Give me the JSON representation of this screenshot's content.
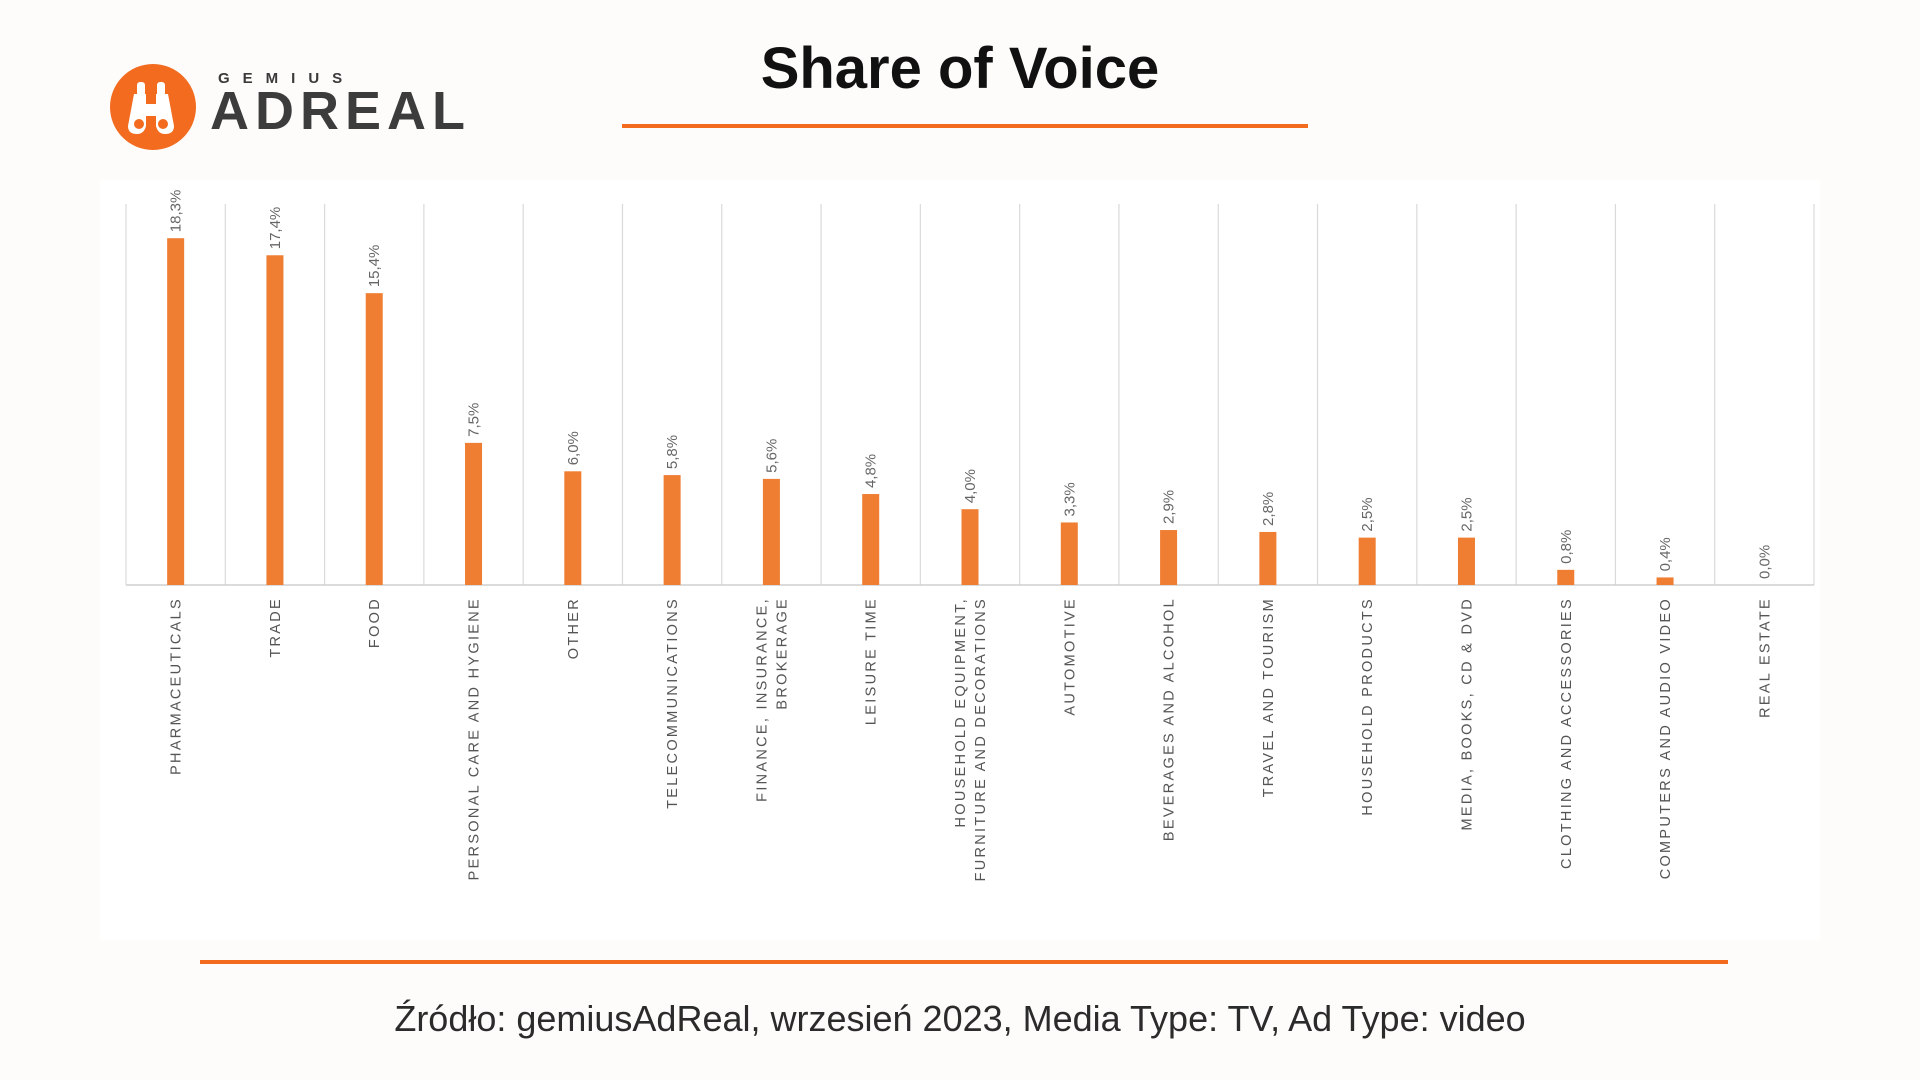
{
  "brand": {
    "small": "GEMIUS",
    "big": "ADREAL",
    "color": "#f26b1f"
  },
  "title": "Share of Voice",
  "source": "Źródło: gemiusAdReal, wrzesień 2023, Media Type: TV, Ad Type: video",
  "chart_data": {
    "type": "bar",
    "title": "Share of Voice",
    "xlabel": "",
    "ylabel": "",
    "ylim": [
      0,
      20
    ],
    "grid": "vertical",
    "bar_color": "#ef7d32",
    "categories": [
      [
        "PHARMACEUTICALS"
      ],
      [
        "TRADE"
      ],
      [
        "FOOD"
      ],
      [
        "PERSONAL CARE AND HYGIENE"
      ],
      [
        "OTHER"
      ],
      [
        "TELECOMMUNICATIONS"
      ],
      [
        "FINANCE, INSURANCE,",
        "BROKERAGE"
      ],
      [
        "LEISURE TIME"
      ],
      [
        "HOUSEHOLD EQUIPMENT,",
        "FURNITURE AND DECORATIONS"
      ],
      [
        "AUTOMOTIVE"
      ],
      [
        "BEVERAGES AND ALCOHOL"
      ],
      [
        "TRAVEL AND TOURISM"
      ],
      [
        "HOUSEHOLD PRODUCTS"
      ],
      [
        "MEDIA, BOOKS, CD & DVD"
      ],
      [
        "CLOTHING AND ACCESSORIES"
      ],
      [
        "COMPUTERS AND AUDIO VIDEO"
      ],
      [
        "REAL ESTATE"
      ]
    ],
    "values": [
      18.3,
      17.4,
      15.4,
      7.5,
      6.0,
      5.8,
      5.6,
      4.8,
      4.0,
      3.3,
      2.9,
      2.8,
      2.5,
      2.5,
      0.8,
      0.4,
      0.0
    ],
    "labels": [
      "18,3%",
      "17,4%",
      "15,4%",
      "7,5%",
      "6,0%",
      "5,8%",
      "5,6%",
      "4,8%",
      "4,0%",
      "3,3%",
      "2,9%",
      "2,8%",
      "2,5%",
      "2,5%",
      "0,8%",
      "0,4%",
      "0,0%"
    ]
  }
}
